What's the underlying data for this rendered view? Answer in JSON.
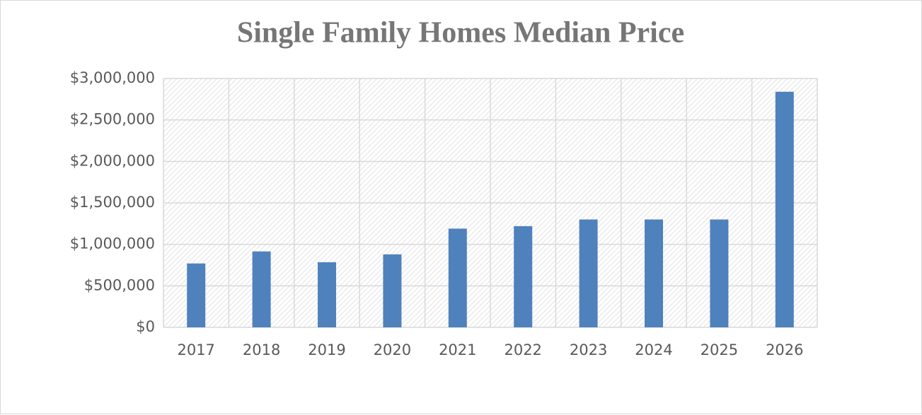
{
  "chart_data": {
    "type": "bar",
    "title": "Single Family Homes Median Price",
    "categories": [
      "2017",
      "2018",
      "2019",
      "2020",
      "2021",
      "2022",
      "2023",
      "2024",
      "2025",
      "2026"
    ],
    "values": [
      770000,
      915000,
      785000,
      880000,
      1190000,
      1220000,
      1300000,
      1300000,
      1300000,
      2840000
    ],
    "color": "#4f81bd",
    "ylim": [
      0,
      3000000
    ],
    "yticks": [
      {
        "value": 0,
        "label": "$0"
      },
      {
        "value": 500000,
        "label": "$500,000"
      },
      {
        "value": 1000000,
        "label": "$1,000,000"
      },
      {
        "value": 1500000,
        "label": "$1,500,000"
      },
      {
        "value": 2000000,
        "label": "$2,000,000"
      },
      {
        "value": 2500000,
        "label": "$2,500,000"
      },
      {
        "value": 3000000,
        "label": "$3,000,000"
      }
    ],
    "grid": true
  }
}
